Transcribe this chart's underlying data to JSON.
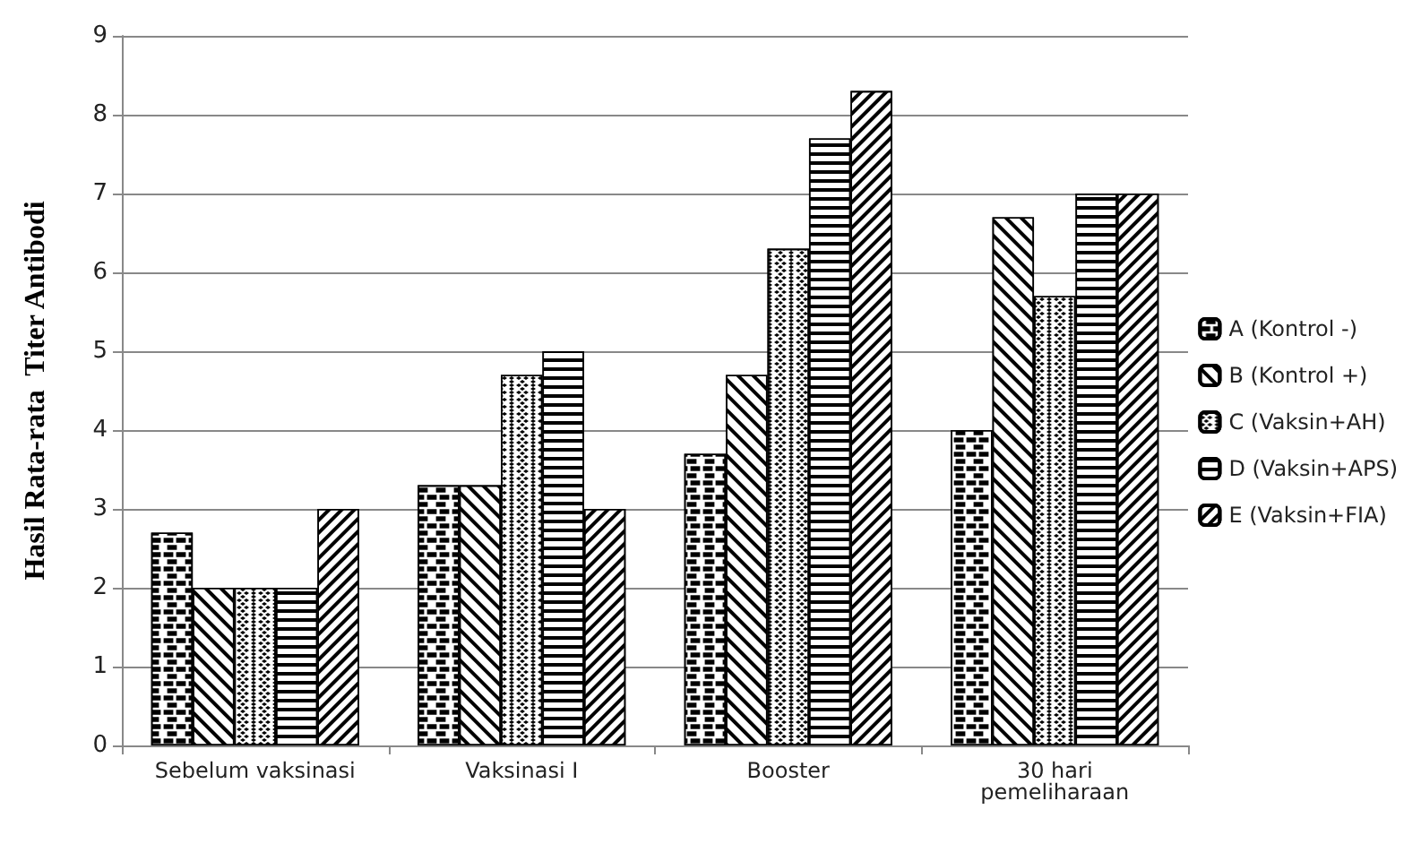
{
  "chart_data": {
    "type": "bar",
    "ylabel": "Hasil Rata-rata  Titer Antibodi",
    "categories": [
      "Sebelum vaksinasi",
      "Vaksinasi I",
      "Booster",
      "30 hari\npemeliharaan"
    ],
    "series": [
      {
        "name": "A (Kontrol -)",
        "color": "#000000",
        "values": [
          2.7,
          3.3,
          3.7,
          4
        ]
      },
      {
        "name": "B (Kontrol +)",
        "color": "#000000",
        "values": [
          2,
          3.3,
          4.7,
          6.7
        ]
      },
      {
        "name": "C (Vaksin+AH)",
        "color": "#000000",
        "values": [
          2,
          4.7,
          6.3,
          5.7
        ]
      },
      {
        "name": "D (Vaksin+APS)",
        "color": "#000000",
        "values": [
          2,
          5,
          7.7,
          7
        ]
      },
      {
        "name": "E (Vaksin+FIA)",
        "color": "#000000",
        "values": [
          3,
          3,
          8.3,
          7
        ]
      }
    ],
    "ylim": [
      0,
      9
    ],
    "yticks": [
      0,
      1,
      2,
      3,
      4,
      5,
      6,
      7,
      8,
      9
    ],
    "grid": "y",
    "legend": "right"
  }
}
